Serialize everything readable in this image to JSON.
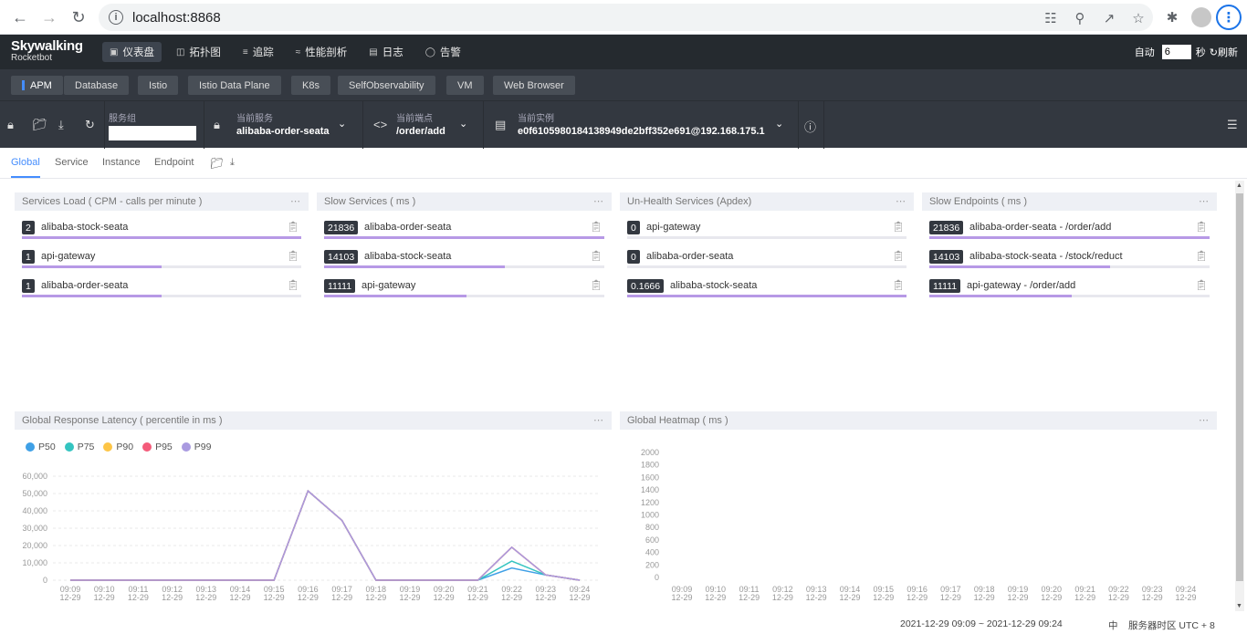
{
  "browser": {
    "url": "localhost:8868"
  },
  "header": {
    "logo_line1": "Skywalking",
    "logo_line2": "Rocketbot",
    "nav": [
      {
        "label": "仪表盘",
        "icon": "dashboard-icon"
      },
      {
        "label": "拓扑图",
        "icon": "topology-icon"
      },
      {
        "label": "追踪",
        "icon": "trace-icon"
      },
      {
        "label": "性能剖析",
        "icon": "profile-icon"
      },
      {
        "label": "日志",
        "icon": "log-icon"
      },
      {
        "label": "告警",
        "icon": "alarm-icon"
      }
    ],
    "auto_label": "自动",
    "auto_value": "6",
    "seconds_label": "秒",
    "refresh_label": "刷新"
  },
  "layers": [
    "APM",
    "Database",
    "Istio",
    "Istio Data Plane",
    "K8s",
    "SelfObservability",
    "VM",
    "Web Browser"
  ],
  "selectors": {
    "group_label": "服务组",
    "group_value": "",
    "service_label": "当前服务",
    "service_value": "alibaba-order-seata",
    "endpoint_label": "当前端点",
    "endpoint_value": "/order/add",
    "instance_label": "当前实例",
    "instance_value": "e0f6105980184138949de2bff352e691@192.168.175.1"
  },
  "dashboard_tabs": [
    "Global",
    "Service",
    "Instance",
    "Endpoint"
  ],
  "panels": {
    "services_load": {
      "title": "Services Load ( CPM - calls per minute )",
      "rows": [
        {
          "value": "2",
          "name": "alibaba-stock-seata",
          "ratio": 1.0
        },
        {
          "value": "1",
          "name": "api-gateway",
          "ratio": 0.5
        },
        {
          "value": "1",
          "name": "alibaba-order-seata",
          "ratio": 0.5
        }
      ]
    },
    "slow_services": {
      "title": "Slow Services ( ms )",
      "rows": [
        {
          "value": "21836",
          "name": "alibaba-order-seata",
          "ratio": 1.0
        },
        {
          "value": "14103",
          "name": "alibaba-stock-seata",
          "ratio": 0.646
        },
        {
          "value": "11111",
          "name": "api-gateway",
          "ratio": 0.509
        }
      ]
    },
    "unhealth_services": {
      "title": "Un-Health Services (Apdex)",
      "rows": [
        {
          "value": "0",
          "name": "api-gateway",
          "ratio": 0.0
        },
        {
          "value": "0",
          "name": "alibaba-order-seata",
          "ratio": 0.0
        },
        {
          "value": "0.1666",
          "name": "alibaba-stock-seata",
          "ratio": 1.0
        }
      ]
    },
    "slow_endpoints": {
      "title": "Slow Endpoints ( ms )",
      "rows": [
        {
          "value": "21836",
          "name": "alibaba-order-seata - /order/add",
          "ratio": 1.0
        },
        {
          "value": "14103",
          "name": "alibaba-stock-seata - /stock/reduct",
          "ratio": 0.646
        },
        {
          "value": "11111",
          "name": "api-gateway - /order/add",
          "ratio": 0.509
        }
      ]
    },
    "latency": {
      "title": "Global Response Latency ( percentile in ms )"
    },
    "heatmap": {
      "title": "Global Heatmap ( ms )"
    }
  },
  "chart_data": [
    {
      "type": "line",
      "title": "Global Response Latency ( percentile in ms )",
      "x": [
        "09:09\n12-29",
        "09:10\n12-29",
        "09:11\n12-29",
        "09:12\n12-29",
        "09:13\n12-29",
        "09:14\n12-29",
        "09:15\n12-29",
        "09:16\n12-29",
        "09:17\n12-29",
        "09:18\n12-29",
        "09:19\n12-29",
        "09:20\n12-29",
        "09:21\n12-29",
        "09:22\n12-29",
        "09:23\n12-29",
        "09:24\n12-29"
      ],
      "x_time": [
        "09:09",
        "09:10",
        "09:11",
        "09:12",
        "09:13",
        "09:14",
        "09:15",
        "09:16",
        "09:17",
        "09:18",
        "09:19",
        "09:20",
        "09:21",
        "09:22",
        "09:23",
        "09:24"
      ],
      "x_date": "12-29",
      "ylim": [
        0,
        60000
      ],
      "yticks": [
        "0",
        "10,000",
        "20,000",
        "30,000",
        "40,000",
        "50,000",
        "60,000"
      ],
      "legend_position": "top-left",
      "series": [
        {
          "name": "P50",
          "color": "#3fa0e6",
          "values": [
            0,
            0,
            0,
            0,
            0,
            0,
            0,
            51500,
            34500,
            0,
            0,
            0,
            0,
            7000,
            3000,
            0
          ]
        },
        {
          "name": "P75",
          "color": "#34c4c0",
          "values": [
            0,
            0,
            0,
            0,
            0,
            0,
            0,
            51500,
            34500,
            0,
            0,
            0,
            0,
            11000,
            3000,
            0
          ]
        },
        {
          "name": "P90",
          "color": "#fdc546",
          "values": [
            0,
            0,
            0,
            0,
            0,
            0,
            0,
            51500,
            34500,
            0,
            0,
            0,
            0,
            19000,
            3000,
            0
          ]
        },
        {
          "name": "P95",
          "color": "#f45b7a",
          "values": [
            0,
            0,
            0,
            0,
            0,
            0,
            0,
            51500,
            34500,
            0,
            0,
            0,
            0,
            19000,
            3000,
            0
          ]
        },
        {
          "name": "P99",
          "color": "#a99ae0",
          "values": [
            0,
            0,
            0,
            0,
            0,
            0,
            0,
            51500,
            34500,
            0,
            0,
            0,
            0,
            19000,
            3000,
            0
          ]
        }
      ]
    },
    {
      "type": "heatmap",
      "title": "Global Heatmap ( ms )",
      "x_time": [
        "09:09",
        "09:10",
        "09:11",
        "09:12",
        "09:13",
        "09:14",
        "09:15",
        "09:16",
        "09:17",
        "09:18",
        "09:19",
        "09:20",
        "09:21",
        "09:22",
        "09:23",
        "09:24"
      ],
      "x_date": "12-29",
      "yticks": [
        "0",
        "200",
        "400",
        "600",
        "800",
        "1000",
        "1200",
        "1400",
        "1600",
        "1800",
        "2000"
      ],
      "values": []
    }
  ],
  "footer": {
    "time_range": "2021-12-29 09:09 ~ 2021-12-29 09:24",
    "lang": "中",
    "timezone": "服务器时区 UTC + 8"
  }
}
